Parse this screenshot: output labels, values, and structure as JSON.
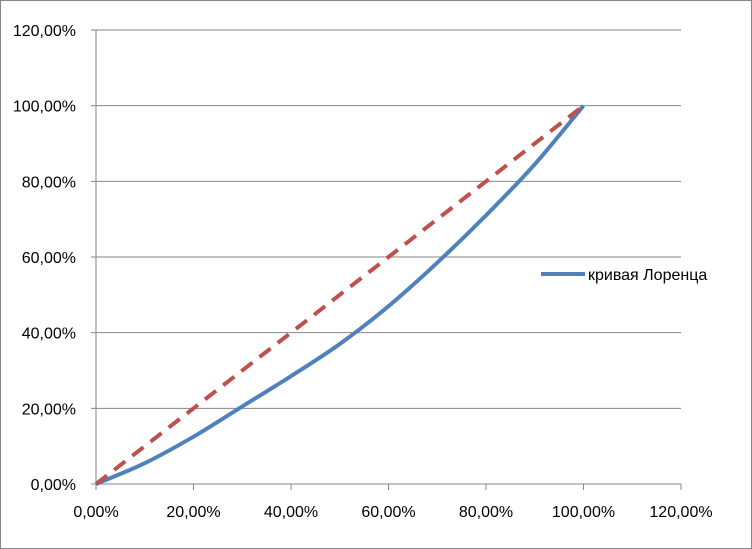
{
  "chart_data": {
    "type": "line",
    "title": "",
    "xlabel": "",
    "ylabel": "",
    "xlim": [
      0,
      1.2
    ],
    "ylim": [
      0,
      1.2
    ],
    "x_ticks": [
      {
        "value": 0.0,
        "label": "0,00%"
      },
      {
        "value": 0.2,
        "label": "20,00%"
      },
      {
        "value": 0.4,
        "label": "40,00%"
      },
      {
        "value": 0.6,
        "label": "60,00%"
      },
      {
        "value": 0.8,
        "label": "80,00%"
      },
      {
        "value": 1.0,
        "label": "100,00%"
      },
      {
        "value": 1.2,
        "label": "120,00%"
      }
    ],
    "y_ticks": [
      {
        "value": 0.0,
        "label": "0,00%"
      },
      {
        "value": 0.2,
        "label": "20,00%"
      },
      {
        "value": 0.4,
        "label": "40,00%"
      },
      {
        "value": 0.6,
        "label": "60,00%"
      },
      {
        "value": 0.8,
        "label": "80,00%"
      },
      {
        "value": 1.0,
        "label": "100,00%"
      },
      {
        "value": 1.2,
        "label": "120,00%"
      }
    ],
    "grid": "horizontal",
    "legend_position": "right",
    "series": [
      {
        "name": "кривая Лоренца",
        "color": "#4F81BD",
        "style": "solid",
        "smooth": true,
        "in_legend": true,
        "x": [
          0.0,
          0.1,
          0.2,
          0.3,
          0.4,
          0.5,
          0.6,
          0.7,
          0.8,
          0.9,
          1.0
        ],
        "y": [
          0.0,
          0.055,
          0.125,
          0.205,
          0.285,
          0.37,
          0.47,
          0.585,
          0.71,
          0.845,
          1.0
        ]
      },
      {
        "name": "",
        "color": "#C0504D",
        "style": "dashed",
        "smooth": false,
        "in_legend": false,
        "x": [
          0.0,
          1.0
        ],
        "y": [
          0.0,
          1.0
        ]
      }
    ]
  }
}
